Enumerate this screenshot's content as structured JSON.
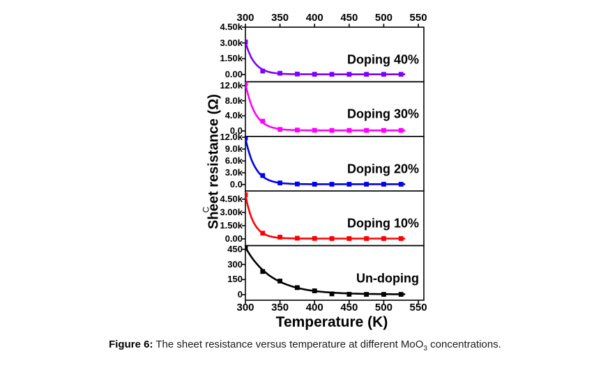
{
  "caption": {
    "prefix": "Figure 6:",
    "body_before_sub": " The sheet resistance versus temperature at different MoO",
    "subscript": "3",
    "body_after_sub": " concentrations."
  },
  "chart_data": {
    "type": "line",
    "title": "",
    "xlabel": "Temperature (K)",
    "ylabel": "Sheet resistance (Ω)",
    "stray_label": "C",
    "grid": false,
    "legend_position": "label-inside-right-of-each-panel",
    "xlim": [
      300,
      558
    ],
    "x_tick_values": [
      300,
      350,
      400,
      450,
      500,
      550
    ],
    "x_tick_labels": [
      "300",
      "350",
      "400",
      "450",
      "500",
      "550"
    ],
    "x": [
      300,
      325,
      350,
      375,
      400,
      425,
      450,
      475,
      500,
      525
    ],
    "panels": [
      {
        "label": "Doping 40%",
        "color": "#7F00FF",
        "ylim": [
          -690,
          4500
        ],
        "yticks": [
          {
            "value": 4500,
            "label": "4.50k"
          },
          {
            "value": 3000,
            "label": "3.00k"
          },
          {
            "value": 1500,
            "label": "1.50k"
          },
          {
            "value": 0,
            "label": "0.00"
          }
        ],
        "values": [
          3100,
          330,
          120,
          45,
          25,
          20,
          20,
          20,
          20,
          20
        ],
        "fit": {
          "A": 3080,
          "tau": 13,
          "C": 20
        }
      },
      {
        "label": "Doping 30%",
        "color": "#FF00FF",
        "ylim": [
          -1440,
          13030
        ],
        "yticks": [
          {
            "value": 12000,
            "label": "12.0k"
          },
          {
            "value": 8000,
            "label": "8.0k"
          },
          {
            "value": 4000,
            "label": "4.0k"
          },
          {
            "value": 0,
            "label": "0.0"
          }
        ],
        "values": [
          12600,
          2600,
          420,
          250,
          180,
          150,
          150,
          150,
          150,
          150
        ],
        "fit": {
          "A": 12450,
          "tau": 14,
          "C": 150
        }
      },
      {
        "label": "Doping 20%",
        "color": "#0000EE",
        "ylim": [
          -1620,
          12210
        ],
        "yticks": [
          {
            "value": 12000,
            "label": "12.0k"
          },
          {
            "value": 9000,
            "label": "9.0k"
          },
          {
            "value": 6000,
            "label": "6.0k"
          },
          {
            "value": 3000,
            "label": "3.0k"
          },
          {
            "value": 0,
            "label": "0.0"
          }
        ],
        "values": [
          11800,
          2300,
          420,
          150,
          100,
          90,
          90,
          90,
          90,
          90
        ],
        "fit": {
          "A": 11700,
          "tau": 14,
          "C": 100
        }
      },
      {
        "label": "Doping 10%",
        "color": "#FF0000",
        "ylim": [
          -760,
          5430
        ],
        "yticks": [
          {
            "value": 4500,
            "label": "4.50k"
          },
          {
            "value": 3000,
            "label": "3.00k"
          },
          {
            "value": 1500,
            "label": "1.50k"
          },
          {
            "value": 0,
            "label": "0.00"
          }
        ],
        "values": [
          5000,
          650,
          200,
          80,
          50,
          40,
          40,
          40,
          40,
          40
        ],
        "fit": {
          "A": 4960,
          "tau": 12,
          "C": 40
        }
      },
      {
        "label": "Un-doping",
        "color": "#000000",
        "ylim": [
          -55,
          487
        ],
        "yticks": [
          {
            "value": 450,
            "label": "450"
          },
          {
            "value": 300,
            "label": "300"
          },
          {
            "value": 150,
            "label": "150"
          },
          {
            "value": 0,
            "label": "0"
          }
        ],
        "values": [
          470,
          230,
          135,
          70,
          38,
          8,
          4,
          3,
          3,
          3
        ],
        "fit": {
          "A": 467,
          "tau": 38,
          "C": 3
        }
      }
    ]
  }
}
